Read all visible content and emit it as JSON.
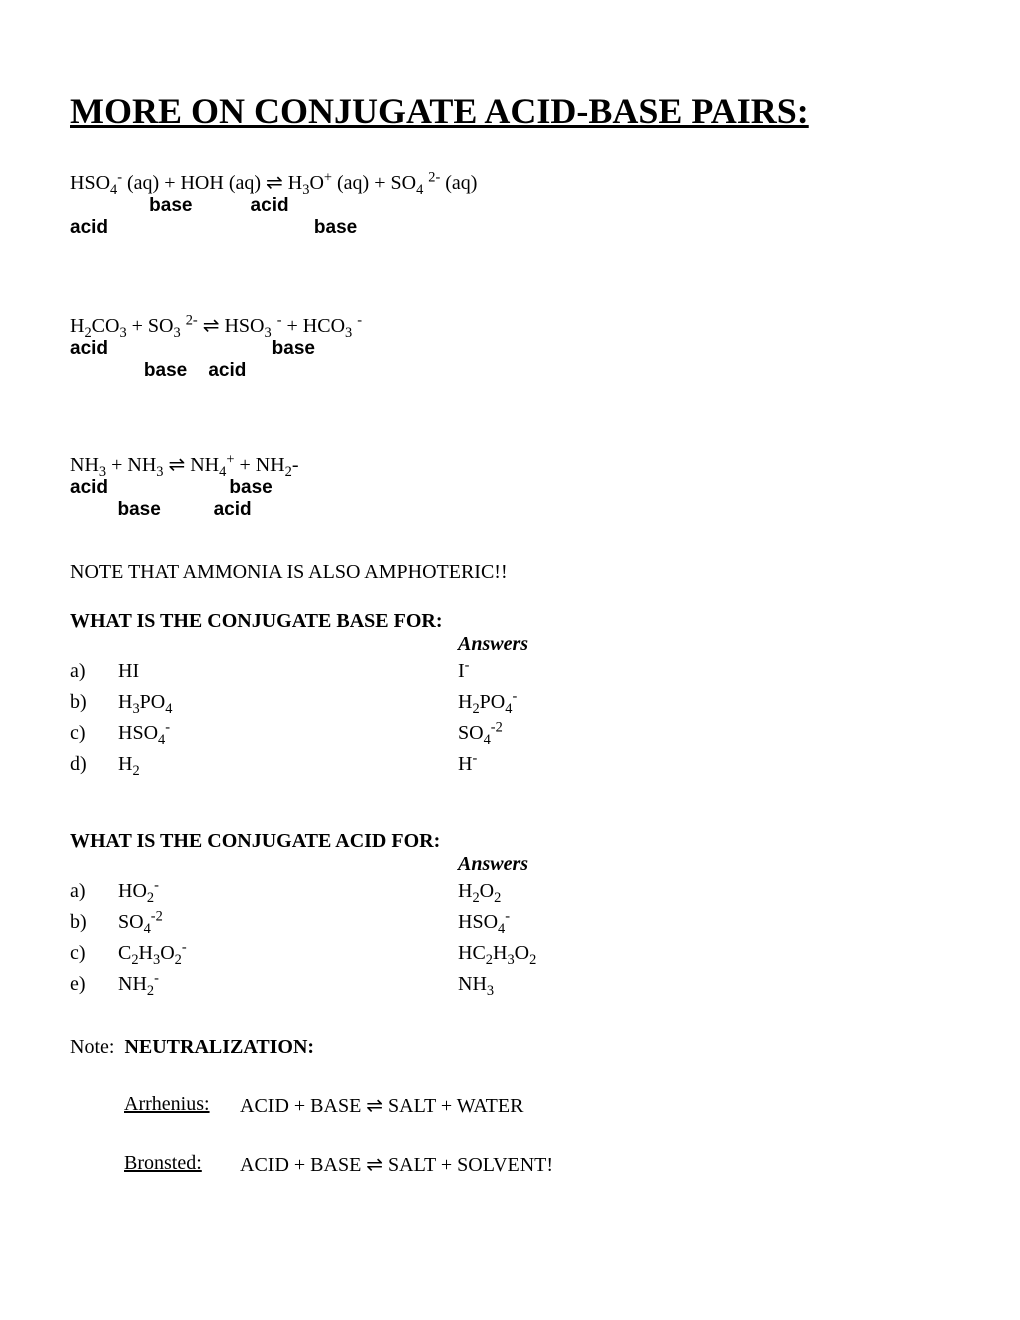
{
  "title": "MORE ON CONJUGATE ACID-BASE PAIRS:",
  "eq1": {
    "formula_html": "HSO<sub>4</sub><sup>-</sup> (aq) + HOH (aq)  ⇌  H<sub>3</sub>O<sup>+</sup> (aq)  + SO<sub>4</sub> <sup>2-</sup> (aq)",
    "labels_line1": "               base           acid",
    "labels_line2": "acid                                       base"
  },
  "eq2": {
    "formula_html": "H<sub>2</sub>CO<sub>3</sub>  + SO<sub>3</sub> <sup>2-</sup>  ⇌  HSO<sub>3</sub> <sup>-</sup> + HCO<sub>3</sub> <sup>-</sup>",
    "labels_line1": "acid                               base",
    "labels_line2": "              base    acid"
  },
  "eq3": {
    "formula_html": "NH<sub>3</sub> +  NH<sub>3</sub>   ⇌   NH<sub>4</sub><sup>+</sup> + NH<sub>2</sub>-",
    "labels_line1": "acid                       base",
    "labels_line2": "         base          acid"
  },
  "note_amphoteric": "NOTE THAT AMMONIA IS ALSO AMPHOTERIC!!",
  "conjugate_base": {
    "heading": "WHAT IS THE CONJUGATE BASE FOR:",
    "answers_heading": "Answers",
    "rows": [
      {
        "letter": "a)",
        "species_html": "HI",
        "answer_html": "I<sup>-</sup>"
      },
      {
        "letter": "b)",
        "species_html": "H<sub>3</sub>PO<sub>4</sub>",
        "answer_html": "H<sub>2</sub>PO<sub>4</sub><sup>-</sup>"
      },
      {
        "letter": "c)",
        "species_html": "HSO<sub>4</sub><sup>-</sup>",
        "answer_html": "SO<sub>4</sub><sup>-2</sup>"
      },
      {
        "letter": "d)",
        "species_html": "H<sub>2</sub>",
        "answer_html": "H<sup>-</sup>"
      }
    ]
  },
  "conjugate_acid": {
    "heading": "WHAT IS THE CONJUGATE ACID FOR:",
    "answers_heading": "Answers",
    "rows": [
      {
        "letter": "a)",
        "species_html": "HO<sub>2</sub><sup>-</sup>",
        "answer_html": "H<sub>2</sub>O<sub>2</sub>"
      },
      {
        "letter": "b)",
        "species_html": "SO<sub>4</sub><sup>-2</sup>",
        "answer_html": "HSO<sub>4</sub><sup>-</sup>"
      },
      {
        "letter": "c)",
        "species_html": "C<sub>2</sub>H<sub>3</sub>O<sub>2</sub><sup>-</sup>",
        "answer_html": "HC<sub>2</sub>H<sub>3</sub>O<sub>2</sub>"
      },
      {
        "letter": "e)",
        "species_html": "NH<sub>2</sub><sup>-</sup>",
        "answer_html": "NH<sub>3</sub>"
      }
    ]
  },
  "neutralization": {
    "note_prefix": "Note:",
    "heading": "NEUTRALIZATION:",
    "rows": [
      {
        "label": "Arrhenius:",
        "eq": "ACID + BASE  ⇌  SALT + WATER"
      },
      {
        "label": "Bronsted:",
        "eq": "ACID + BASE  ⇌ SALT + SOLVENT!"
      }
    ]
  }
}
